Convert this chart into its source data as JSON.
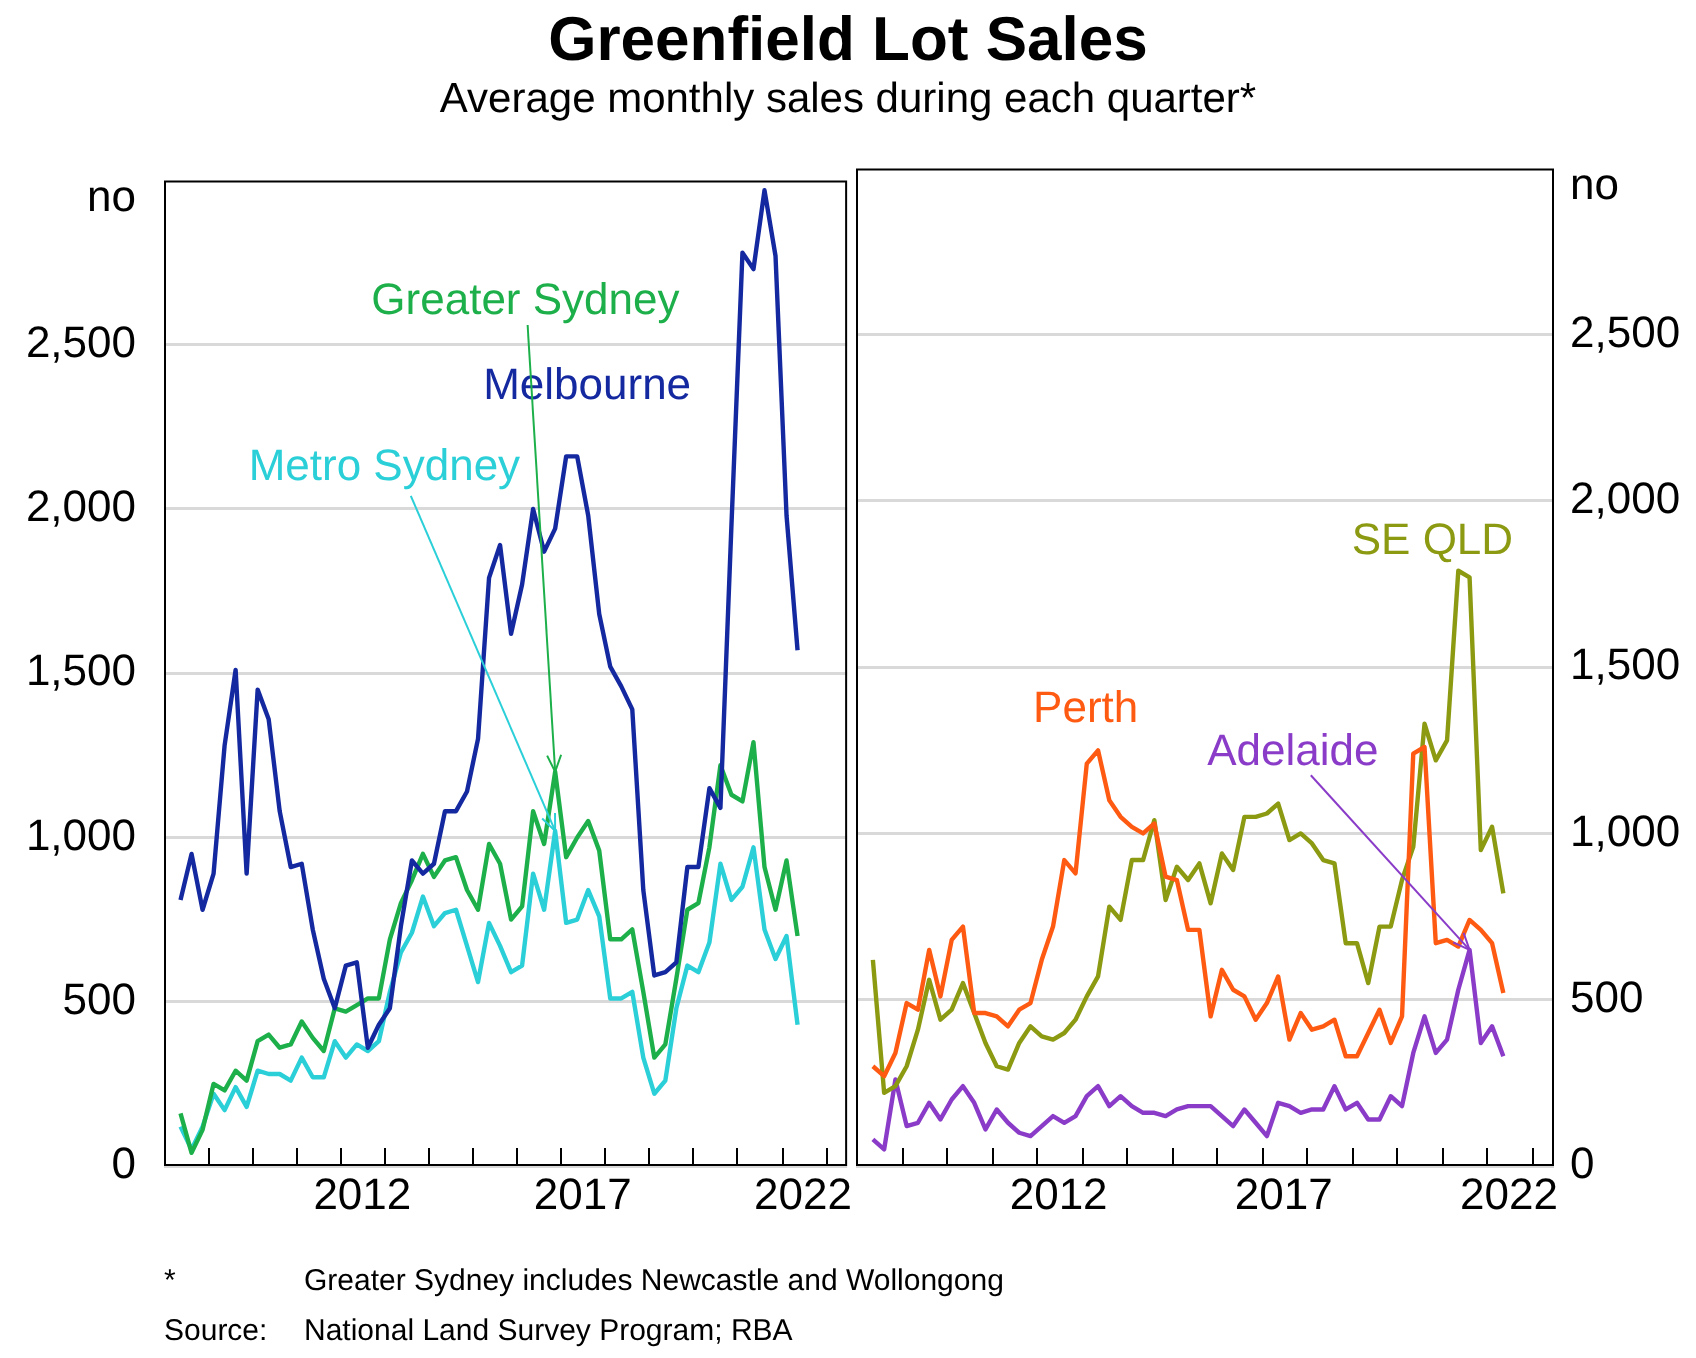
{
  "chart_data": [
    {
      "type": "line",
      "title": "Greenfield Lot Sales",
      "subtitle": "Average monthly sales during each quarter*",
      "ylabel": "no",
      "annotations": [
        "*\tGreater Sydney includes Newcastle and Wollongong",
        "Source:\tNational Land Survey Program; RBA"
      ],
      "x": [
        2008.375,
        2008.625,
        2008.875,
        2009.125,
        2009.375,
        2009.625,
        2009.875,
        2010.125,
        2010.375,
        2010.625,
        2010.875,
        2011.125,
        2011.375,
        2011.625,
        2011.875,
        2012.125,
        2012.375,
        2012.625,
        2012.875,
        2013.125,
        2013.375,
        2013.625,
        2013.875,
        2014.125,
        2014.375,
        2014.625,
        2014.875,
        2015.125,
        2015.375,
        2015.625,
        2015.875,
        2016.125,
        2016.375,
        2016.625,
        2016.875,
        2017.125,
        2017.375,
        2017.625,
        2017.875,
        2018.125,
        2018.375,
        2018.625,
        2018.875,
        2019.125,
        2019.375,
        2019.625,
        2019.875,
        2020.125,
        2020.375,
        2020.625,
        2020.875,
        2021.125,
        2021.375,
        2021.625,
        2021.875,
        2022.125,
        2022.375
      ],
      "series": [
        {
          "name": "Melbourne",
          "color": "#1428a0",
          "values": [
            810,
            950,
            780,
            890,
            1280,
            1510,
            890,
            1450,
            1360,
            1080,
            910,
            920,
            720,
            570,
            480,
            610,
            620,
            360,
            430,
            480,
            730,
            930,
            890,
            920,
            1080,
            1080,
            1140,
            1300,
            1790,
            1890,
            1620,
            1770,
            2000,
            1870,
            1940,
            2160,
            2160,
            1980,
            1680,
            1520,
            1460,
            1390,
            840,
            580,
            590,
            620,
            910,
            910,
            1150,
            1090,
            1950,
            2780,
            2730,
            2970,
            2770,
            1980,
            1570
          ]
        },
        {
          "name": "Greater Sydney",
          "color": "#1db04a",
          "values": [
            160,
            40,
            110,
            250,
            230,
            290,
            260,
            380,
            400,
            360,
            370,
            440,
            390,
            350,
            480,
            470,
            490,
            510,
            510,
            690,
            800,
            870,
            950,
            880,
            930,
            940,
            840,
            780,
            980,
            920,
            750,
            790,
            1080,
            980,
            1200,
            940,
            1000,
            1050,
            960,
            690,
            690,
            720,
            530,
            330,
            370,
            570,
            780,
            800,
            970,
            1220,
            1130,
            1110,
            1290,
            910,
            780,
            930,
            700
          ]
        },
        {
          "name": "Metro Sydney",
          "color": "#2acfd8",
          "values": [
            120,
            50,
            120,
            220,
            170,
            240,
            180,
            290,
            280,
            280,
            260,
            330,
            270,
            270,
            380,
            330,
            370,
            350,
            380,
            530,
            650,
            710,
            820,
            730,
            770,
            780,
            670,
            560,
            740,
            670,
            590,
            610,
            890,
            780,
            1020,
            740,
            750,
            840,
            760,
            510,
            510,
            530,
            330,
            220,
            260,
            480,
            610,
            590,
            680,
            920,
            810,
            850,
            970,
            720,
            630,
            700,
            430
          ]
        }
      ],
      "xlim": [
        2008,
        2023.5
      ],
      "ylim": [
        0,
        3000
      ],
      "xticks": [
        {
          "value": 2009,
          "label": null
        },
        {
          "value": 2010,
          "label": null
        },
        {
          "value": 2011,
          "label": null
        },
        {
          "value": 2012,
          "label": null
        },
        {
          "value": 2013,
          "label": null
        },
        {
          "value": 2014,
          "label": null
        },
        {
          "value": 2015,
          "label": null
        },
        {
          "value": 2016,
          "label": null
        },
        {
          "value": 2017,
          "label": null
        },
        {
          "value": 2018,
          "label": null
        },
        {
          "value": 2019,
          "label": null
        },
        {
          "value": 2020,
          "label": null
        },
        {
          "value": 2021,
          "label": null
        },
        {
          "value": 2022,
          "label": null
        },
        {
          "value": 2023,
          "label": null
        },
        {
          "value": 2012.5,
          "label": "2012"
        },
        {
          "value": 2017.5,
          "label": "2017"
        },
        {
          "value": 2022.5,
          "label": "2022"
        }
      ],
      "yticks": [
        0,
        {
          "value": 500,
          "label": "500"
        },
        {
          "value": 1000,
          "label": "1,000"
        },
        {
          "value": 1500,
          "label": "1,500"
        },
        {
          "value": 2000,
          "label": "2,000"
        },
        {
          "value": 2500,
          "label": "2,500"
        }
      ],
      "grid": "y",
      "legend": false,
      "marker": "none",
      "line_style": "solid"
    },
    {
      "type": "line",
      "ylabel": "no",
      "x": [
        2008.375,
        2008.625,
        2008.875,
        2009.125,
        2009.375,
        2009.625,
        2009.875,
        2010.125,
        2010.375,
        2010.625,
        2010.875,
        2011.125,
        2011.375,
        2011.625,
        2011.875,
        2012.125,
        2012.375,
        2012.625,
        2012.875,
        2013.125,
        2013.375,
        2013.625,
        2013.875,
        2014.125,
        2014.375,
        2014.625,
        2014.875,
        2015.125,
        2015.375,
        2015.625,
        2015.875,
        2016.125,
        2016.375,
        2016.625,
        2016.875,
        2017.125,
        2017.375,
        2017.625,
        2017.875,
        2018.125,
        2018.375,
        2018.625,
        2018.875,
        2019.125,
        2019.375,
        2019.625,
        2019.875,
        2020.125,
        2020.375,
        2020.625,
        2020.875,
        2021.125,
        2021.375,
        2021.625,
        2021.875,
        2022.125,
        2022.375
      ],
      "series": [
        {
          "name": "Perth",
          "color": "#ff5a12",
          "values": [
            300,
            270,
            340,
            490,
            470,
            650,
            510,
            680,
            720,
            460,
            460,
            450,
            420,
            470,
            490,
            620,
            720,
            920,
            880,
            1210,
            1250,
            1100,
            1050,
            1020,
            1000,
            1030,
            870,
            860,
            710,
            710,
            450,
            590,
            530,
            510,
            440,
            490,
            570,
            380,
            460,
            410,
            420,
            440,
            330,
            330,
            400,
            470,
            370,
            450,
            1240,
            1260,
            670,
            680,
            660,
            740,
            710,
            670,
            520
          ]
        },
        {
          "name": "SE QLD",
          "color": "#8c9a12",
          "values": [
            620,
            220,
            240,
            300,
            410,
            560,
            440,
            470,
            550,
            460,
            370,
            300,
            290,
            370,
            420,
            390,
            380,
            400,
            440,
            510,
            570,
            780,
            740,
            920,
            920,
            1040,
            800,
            900,
            860,
            910,
            790,
            940,
            890,
            1050,
            1050,
            1060,
            1090,
            980,
            1000,
            970,
            920,
            910,
            670,
            670,
            550,
            720,
            720,
            860,
            960,
            1330,
            1220,
            1280,
            1790,
            1770,
            950,
            1020,
            820
          ]
        },
        {
          "name": "Adelaide",
          "color": "#8a3cc8",
          "values": [
            80,
            50,
            260,
            120,
            130,
            190,
            140,
            200,
            240,
            190,
            110,
            170,
            130,
            100,
            90,
            120,
            150,
            130,
            150,
            210,
            240,
            180,
            210,
            180,
            160,
            160,
            150,
            170,
            180,
            180,
            180,
            150,
            120,
            170,
            130,
            90,
            190,
            180,
            160,
            170,
            170,
            240,
            170,
            190,
            140,
            140,
            210,
            180,
            340,
            450,
            340,
            380,
            530,
            650,
            370,
            420,
            330
          ]
        }
      ],
      "xlim": [
        2008,
        2023.5
      ],
      "ylim": [
        0,
        3000
      ],
      "xticks": [
        {
          "value": 2009,
          "label": null
        },
        {
          "value": 2010,
          "label": null
        },
        {
          "value": 2011,
          "label": null
        },
        {
          "value": 2012,
          "label": null
        },
        {
          "value": 2013,
          "label": null
        },
        {
          "value": 2014,
          "label": null
        },
        {
          "value": 2015,
          "label": null
        },
        {
          "value": 2016,
          "label": null
        },
        {
          "value": 2017,
          "label": null
        },
        {
          "value": 2018,
          "label": null
        },
        {
          "value": 2019,
          "label": null
        },
        {
          "value": 2020,
          "label": null
        },
        {
          "value": 2021,
          "label": null
        },
        {
          "value": 2022,
          "label": null
        },
        {
          "value": 2023,
          "label": null
        },
        {
          "value": 2012.5,
          "label": "2012"
        },
        {
          "value": 2017.5,
          "label": "2017"
        },
        {
          "value": 2022.5,
          "label": "2022"
        }
      ],
      "yticks": [
        0,
        {
          "value": 500,
          "label": "500"
        },
        {
          "value": 1000,
          "label": "1,000"
        },
        {
          "value": 1500,
          "label": "1,500"
        },
        {
          "value": 2000,
          "label": "2,000"
        },
        {
          "value": 2500,
          "label": "2,500"
        }
      ],
      "grid": "y",
      "legend": false,
      "marker": "none",
      "line_style": "solid"
    }
  ]
}
